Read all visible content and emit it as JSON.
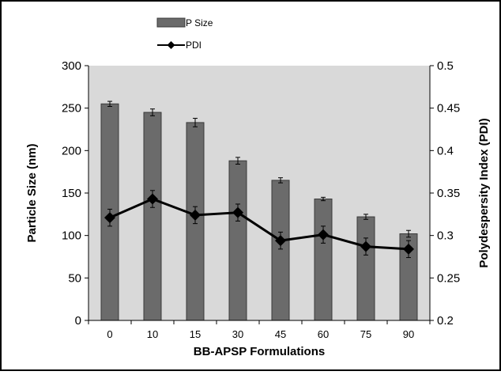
{
  "chart_data": {
    "type": "bar",
    "categories": [
      "0",
      "10",
      "15",
      "30",
      "45",
      "60",
      "75",
      "90"
    ],
    "series": [
      {
        "name": "P Size",
        "kind": "bar",
        "axis": "left",
        "values": [
          255,
          245,
          233,
          188,
          165,
          143,
          122,
          102
        ],
        "errors": [
          3,
          4,
          5,
          4,
          3,
          2,
          3,
          4
        ]
      },
      {
        "name": "PDI",
        "kind": "line",
        "axis": "right",
        "values": [
          0.321,
          0.343,
          0.324,
          0.327,
          0.294,
          0.301,
          0.287,
          0.284
        ],
        "errors": [
          0.01,
          0.01,
          0.01,
          0.01,
          0.01,
          0.01,
          0.01,
          0.01
        ]
      }
    ],
    "xlabel": "BB-APSP Formulations",
    "ylabel": "Particle Size (nm)",
    "y2label": "Polydespersity Index (PDI)",
    "ylim": [
      0,
      300
    ],
    "y2lim": [
      0.2,
      0.5
    ],
    "yticks": [
      "0",
      "50",
      "100",
      "150",
      "200",
      "250",
      "300"
    ],
    "y2ticks": [
      "0.2",
      "0.25",
      "0.3",
      "0.35",
      "0.4",
      "0.45",
      "0.5"
    ],
    "grid": false,
    "legend_position": "top-left",
    "colors": {
      "bar_fill": "#6b6b6b",
      "bar_stroke": "#3a3a3a",
      "line": "#000000",
      "plot_bg": "#d9d9d9",
      "frame": "#000000"
    }
  }
}
